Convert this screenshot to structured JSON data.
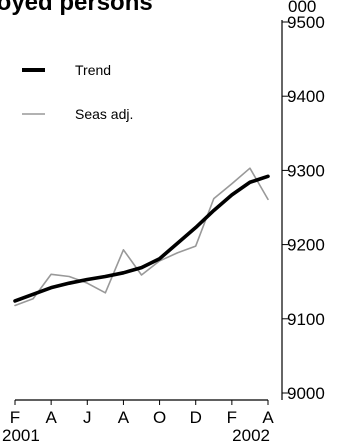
{
  "chart_data": {
    "type": "line",
    "title": "Employed persons",
    "yunit": "000",
    "ylim": [
      9000,
      9500
    ],
    "yticks": [
      9000,
      9100,
      9200,
      9300,
      9400,
      9500
    ],
    "x": [
      "2001-02",
      "2001-03",
      "2001-04",
      "2001-05",
      "2001-06",
      "2001-07",
      "2001-08",
      "2001-09",
      "2001-10",
      "2001-11",
      "2001-12",
      "2002-01",
      "2002-02",
      "2002-03",
      "2002-04"
    ],
    "xtick_labels": [
      "F",
      "A",
      "J",
      "A",
      "O",
      "D",
      "F",
      "A"
    ],
    "year_labels": [
      "2001",
      "2002"
    ],
    "grid": false,
    "legend_position": "top-left",
    "series": [
      {
        "name": "Trend",
        "color": "#000000",
        "style": "thick",
        "values": [
          9124,
          9133,
          9142,
          9148,
          9153,
          9157,
          9162,
          9169,
          9181,
          9202,
          9223,
          9246,
          9267,
          9284,
          9292
        ]
      },
      {
        "name": "Seas adj.",
        "color": "#999999",
        "style": "thin",
        "values": [
          9118,
          9127,
          9160,
          9157,
          9148,
          9135,
          9193,
          9159,
          9178,
          9189,
          9198,
          9262,
          9282,
          9303,
          9261
        ]
      }
    ]
  }
}
